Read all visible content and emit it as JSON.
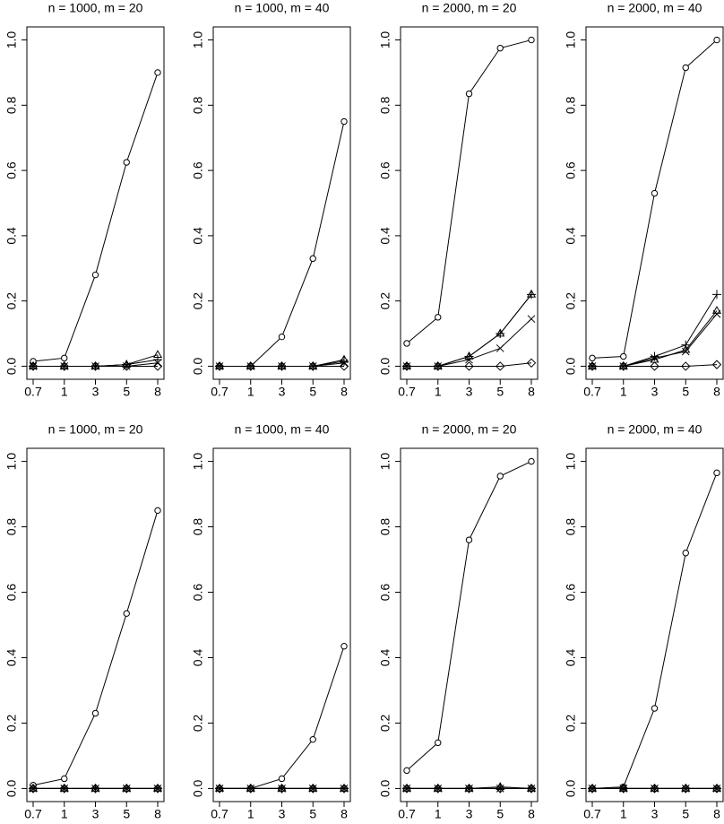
{
  "chart_data": [
    {
      "type": "line",
      "title": "n = 1000, m = 20",
      "categories": [
        "0.7",
        "1",
        "3",
        "5",
        "8"
      ],
      "ylim": [
        -0.04,
        1.04
      ],
      "yticks": [
        {
          "value": 0,
          "label": "0.0"
        },
        0.2,
        0.4,
        0.6,
        0.8,
        {
          "value": 1,
          "label": "1.0"
        }
      ],
      "series": [
        {
          "marker": "circle",
          "color": "#000000",
          "values": [
            0.015,
            0.025,
            0.28,
            0.625,
            0.9
          ]
        },
        {
          "marker": "triangle",
          "color": "#000000",
          "values": [
            0,
            0,
            0,
            0.005,
            0.035
          ]
        },
        {
          "marker": "plus",
          "color": "#000000",
          "values": [
            0,
            0,
            0,
            0.005,
            0.02
          ]
        },
        {
          "marker": "cross",
          "color": "#000000",
          "values": [
            0,
            0,
            0,
            0,
            0.01
          ]
        },
        {
          "marker": "diamond",
          "color": "#000000",
          "values": [
            0,
            0,
            0,
            0,
            0
          ]
        }
      ]
    },
    {
      "type": "line",
      "title": "n = 1000, m = 40",
      "categories": [
        "0.7",
        "1",
        "3",
        "5",
        "8"
      ],
      "ylim": [
        -0.04,
        1.04
      ],
      "yticks": [
        {
          "value": 0,
          "label": "0.0"
        },
        0.2,
        0.4,
        0.6,
        0.8,
        {
          "value": 1,
          "label": "1.0"
        }
      ],
      "series": [
        {
          "marker": "circle",
          "color": "#000000",
          "values": [
            0,
            0,
            0.09,
            0.33,
            0.75
          ]
        },
        {
          "marker": "triangle",
          "color": "#000000",
          "values": [
            0,
            0,
            0,
            0,
            0.02
          ]
        },
        {
          "marker": "plus",
          "color": "#000000",
          "values": [
            0,
            0,
            0,
            0,
            0.015
          ]
        },
        {
          "marker": "cross",
          "color": "#000000",
          "values": [
            0,
            0,
            0,
            0,
            0.01
          ]
        },
        {
          "marker": "diamond",
          "color": "#000000",
          "values": [
            0,
            0,
            0,
            0,
            0
          ]
        }
      ]
    },
    {
      "type": "line",
      "title": "n = 2000, m = 20",
      "categories": [
        "0.7",
        "1",
        "3",
        "5",
        "8"
      ],
      "ylim": [
        -0.04,
        1.04
      ],
      "yticks": [
        {
          "value": 0,
          "label": "0.0"
        },
        0.2,
        0.4,
        0.6,
        0.8,
        {
          "value": 1,
          "label": "1.0"
        }
      ],
      "series": [
        {
          "marker": "circle",
          "color": "#000000",
          "values": [
            0.07,
            0.15,
            0.835,
            0.975,
            1.0
          ]
        },
        {
          "marker": "triangle",
          "color": "#000000",
          "values": [
            0,
            0,
            0.03,
            0.1,
            0.22
          ]
        },
        {
          "marker": "plus",
          "color": "#000000",
          "values": [
            0,
            0,
            0.03,
            0.1,
            0.22
          ]
        },
        {
          "marker": "cross",
          "color": "#000000",
          "values": [
            0,
            0,
            0.02,
            0.055,
            0.145
          ]
        },
        {
          "marker": "diamond",
          "color": "#000000",
          "values": [
            0,
            0,
            0,
            0,
            0.01
          ]
        }
      ]
    },
    {
      "type": "line",
      "title": "n = 2000, m = 40",
      "categories": [
        "0.7",
        "1",
        "3",
        "5",
        "8"
      ],
      "ylim": [
        -0.04,
        1.04
      ],
      "yticks": [
        {
          "value": 0,
          "label": "0.0"
        },
        0.2,
        0.4,
        0.6,
        0.8,
        {
          "value": 1,
          "label": "1.0"
        }
      ],
      "series": [
        {
          "marker": "circle",
          "color": "#000000",
          "values": [
            0.025,
            0.03,
            0.53,
            0.915,
            1.0
          ]
        },
        {
          "marker": "triangle",
          "color": "#000000",
          "values": [
            0,
            0,
            0.02,
            0.05,
            0.17
          ]
        },
        {
          "marker": "plus",
          "color": "#000000",
          "values": [
            0,
            0,
            0.03,
            0.065,
            0.22
          ]
        },
        {
          "marker": "cross",
          "color": "#000000",
          "values": [
            0,
            0,
            0.025,
            0.045,
            0.16
          ]
        },
        {
          "marker": "diamond",
          "color": "#000000",
          "values": [
            0,
            0,
            0,
            0,
            0.005
          ]
        }
      ]
    },
    {
      "type": "line",
      "title": "n = 1000, m = 20",
      "categories": [
        "0.7",
        "1",
        "3",
        "5",
        "8"
      ],
      "ylim": [
        -0.04,
        1.04
      ],
      "yticks": [
        {
          "value": 0,
          "label": "0.0"
        },
        0.2,
        0.4,
        0.6,
        0.8,
        {
          "value": 1,
          "label": "1.0"
        }
      ],
      "series": [
        {
          "marker": "circle",
          "color": "#000000",
          "values": [
            0.01,
            0.03,
            0.23,
            0.535,
            0.85
          ]
        },
        {
          "marker": "triangle",
          "color": "#000000",
          "values": [
            0,
            0,
            0,
            0,
            0
          ]
        },
        {
          "marker": "plus",
          "color": "#000000",
          "values": [
            0,
            0,
            0,
            0,
            0
          ]
        },
        {
          "marker": "cross",
          "color": "#000000",
          "values": [
            0,
            0,
            0,
            0,
            0
          ]
        },
        {
          "marker": "diamond",
          "color": "#000000",
          "values": [
            0,
            0,
            0,
            0,
            0
          ]
        }
      ]
    },
    {
      "type": "line",
      "title": "n = 1000, m = 40",
      "categories": [
        "0.7",
        "1",
        "3",
        "5",
        "8"
      ],
      "ylim": [
        -0.04,
        1.04
      ],
      "yticks": [
        {
          "value": 0,
          "label": "0.0"
        },
        0.2,
        0.4,
        0.6,
        0.8,
        {
          "value": 1,
          "label": "1.0"
        }
      ],
      "series": [
        {
          "marker": "circle",
          "color": "#000000",
          "values": [
            0,
            0,
            0.03,
            0.15,
            0.435
          ]
        },
        {
          "marker": "triangle",
          "color": "#000000",
          "values": [
            0,
            0,
            0,
            0,
            0
          ]
        },
        {
          "marker": "plus",
          "color": "#000000",
          "values": [
            0,
            0,
            0,
            0,
            0
          ]
        },
        {
          "marker": "cross",
          "color": "#000000",
          "values": [
            0,
            0,
            0,
            0,
            0
          ]
        },
        {
          "marker": "diamond",
          "color": "#000000",
          "values": [
            0,
            0,
            0,
            0,
            0
          ]
        }
      ]
    },
    {
      "type": "line",
      "title": "n = 2000, m = 20",
      "categories": [
        "0.7",
        "1",
        "3",
        "5",
        "8"
      ],
      "ylim": [
        -0.04,
        1.04
      ],
      "yticks": [
        {
          "value": 0,
          "label": "0.0"
        },
        0.2,
        0.4,
        0.6,
        0.8,
        {
          "value": 1,
          "label": "1.0"
        }
      ],
      "series": [
        {
          "marker": "circle",
          "color": "#000000",
          "values": [
            0.055,
            0.14,
            0.76,
            0.955,
            1.0
          ]
        },
        {
          "marker": "triangle",
          "color": "#000000",
          "values": [
            0,
            0,
            0,
            0.005,
            0
          ]
        },
        {
          "marker": "plus",
          "color": "#000000",
          "values": [
            0,
            0,
            0,
            0,
            0
          ]
        },
        {
          "marker": "cross",
          "color": "#000000",
          "values": [
            0,
            0,
            0,
            0,
            0
          ]
        },
        {
          "marker": "diamond",
          "color": "#000000",
          "values": [
            0,
            0,
            0,
            0,
            0
          ]
        }
      ]
    },
    {
      "type": "line",
      "title": "n = 2000, m = 40",
      "categories": [
        "0.7",
        "1",
        "3",
        "5",
        "8"
      ],
      "ylim": [
        -0.04,
        1.04
      ],
      "yticks": [
        {
          "value": 0,
          "label": "0.0"
        },
        0.2,
        0.4,
        0.6,
        0.8,
        {
          "value": 1,
          "label": "1.0"
        }
      ],
      "series": [
        {
          "marker": "circle",
          "color": "#000000",
          "values": [
            0,
            0.005,
            0.245,
            0.72,
            0.965
          ]
        },
        {
          "marker": "triangle",
          "color": "#000000",
          "values": [
            0,
            0,
            0,
            0,
            0
          ]
        },
        {
          "marker": "plus",
          "color": "#000000",
          "values": [
            0,
            0,
            0,
            0,
            0
          ]
        },
        {
          "marker": "cross",
          "color": "#000000",
          "values": [
            0,
            0,
            0,
            0,
            0
          ]
        },
        {
          "marker": "diamond",
          "color": "#000000",
          "values": [
            0,
            0,
            0,
            0,
            0
          ]
        }
      ]
    }
  ]
}
